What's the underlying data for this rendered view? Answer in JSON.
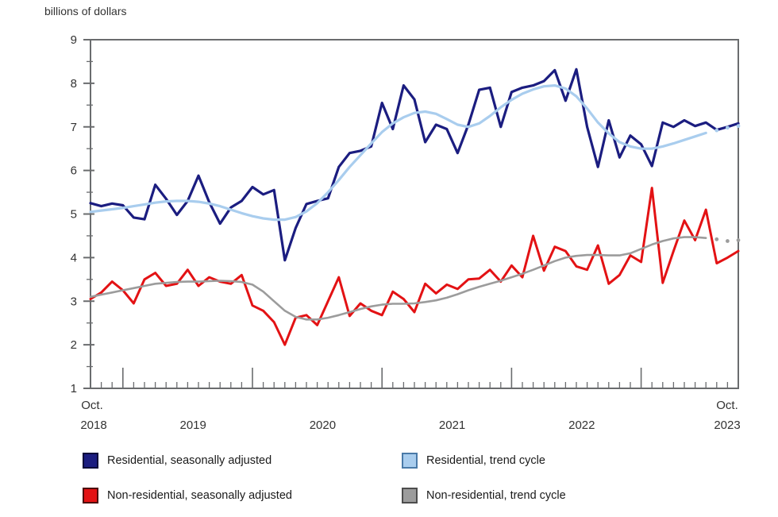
{
  "units_label": "billions of dollars",
  "colors": {
    "residential_sa": "#1b1d80",
    "residential_trend": "#a9cdee",
    "nonresidential_sa": "#e31214",
    "nonresidential_trend": "#9c9c9c",
    "axis": "#6a6c6e",
    "text": "#333333"
  },
  "chart_data": {
    "type": "line",
    "title": "billions of dollars",
    "ylabel": "billions of dollars",
    "xlabel": "",
    "ylim": [
      1,
      9
    ],
    "y_ticks": [
      1,
      2,
      3,
      4,
      5,
      6,
      7,
      8,
      9
    ],
    "y_minor_tick_step": 0.5,
    "grid": false,
    "legend_position": "bottom",
    "frequency": "monthly",
    "x_start": "2018-10",
    "x_end": "2023-10",
    "n_points": 61,
    "trend_dotted_tail_points": 3,
    "x_axis": {
      "left_label_line1": "Oct.",
      "left_label_line2": "2018",
      "years": [
        "2019",
        "2020",
        "2021",
        "2022"
      ],
      "right_label_line1": "Oct.",
      "right_label_line2": "2023"
    },
    "series": [
      {
        "name": "Residential, seasonally adjusted",
        "color": "#1b1d80",
        "style": "solid",
        "line_width": 3.2,
        "values": [
          5.25,
          5.18,
          5.24,
          5.2,
          4.92,
          4.88,
          5.67,
          5.35,
          4.98,
          5.3,
          5.88,
          5.27,
          4.78,
          5.15,
          5.3,
          5.62,
          5.45,
          5.55,
          3.94,
          4.68,
          5.23,
          5.3,
          5.36,
          6.08,
          6.4,
          6.45,
          6.55,
          7.55,
          6.95,
          7.95,
          7.63,
          6.65,
          7.05,
          6.95,
          6.4,
          7.05,
          7.85,
          7.9,
          7.0,
          7.8,
          7.9,
          7.95,
          8.05,
          8.3,
          7.6,
          8.32,
          7.0,
          6.08,
          7.15,
          6.3,
          6.8,
          6.6,
          6.1,
          7.1,
          7.0,
          7.15,
          7.02,
          7.1,
          6.93,
          7.0,
          7.08
        ]
      },
      {
        "name": "Residential, trend cycle",
        "color": "#a9cdee",
        "style": "solid_with_dotted_tail",
        "line_width": 3.2,
        "values": [
          5.05,
          5.08,
          5.11,
          5.14,
          5.18,
          5.22,
          5.26,
          5.29,
          5.3,
          5.3,
          5.28,
          5.24,
          5.18,
          5.1,
          5.02,
          4.95,
          4.9,
          4.87,
          4.87,
          4.93,
          5.06,
          5.25,
          5.5,
          5.78,
          6.08,
          6.35,
          6.62,
          6.88,
          7.08,
          7.22,
          7.32,
          7.35,
          7.3,
          7.18,
          7.05,
          7.0,
          7.08,
          7.25,
          7.45,
          7.62,
          7.76,
          7.86,
          7.93,
          7.95,
          7.88,
          7.7,
          7.42,
          7.1,
          6.85,
          6.65,
          6.55,
          6.5,
          6.5,
          6.55,
          6.62,
          6.7,
          6.78,
          6.86,
          6.92,
          6.98,
          7.02
        ]
      },
      {
        "name": "Non-residential, seasonally adjusted",
        "color": "#e31214",
        "style": "solid",
        "line_width": 3.0,
        "values": [
          3.05,
          3.2,
          3.45,
          3.25,
          2.95,
          3.5,
          3.65,
          3.35,
          3.4,
          3.72,
          3.35,
          3.55,
          3.45,
          3.4,
          3.6,
          2.9,
          2.78,
          2.52,
          2.0,
          2.62,
          2.68,
          2.45,
          3.0,
          3.55,
          2.66,
          2.95,
          2.78,
          2.68,
          3.22,
          3.05,
          2.75,
          3.4,
          3.18,
          3.38,
          3.28,
          3.5,
          3.52,
          3.72,
          3.45,
          3.82,
          3.55,
          4.5,
          3.7,
          4.25,
          4.15,
          3.8,
          3.72,
          4.28,
          3.4,
          3.6,
          4.05,
          3.9,
          5.6,
          3.42,
          4.15,
          4.85,
          4.4,
          5.1,
          3.87,
          4.0,
          4.15
        ]
      },
      {
        "name": "Non-residential, trend cycle",
        "color": "#9c9c9c",
        "style": "solid_with_dotted_tail",
        "line_width": 2.6,
        "values": [
          3.1,
          3.15,
          3.2,
          3.25,
          3.3,
          3.35,
          3.4,
          3.42,
          3.44,
          3.45,
          3.45,
          3.46,
          3.47,
          3.46,
          3.44,
          3.38,
          3.22,
          3.0,
          2.78,
          2.64,
          2.58,
          2.58,
          2.62,
          2.68,
          2.75,
          2.82,
          2.88,
          2.92,
          2.94,
          2.94,
          2.95,
          2.98,
          3.02,
          3.08,
          3.16,
          3.25,
          3.33,
          3.4,
          3.47,
          3.55,
          3.63,
          3.72,
          3.82,
          3.92,
          4.0,
          4.04,
          4.06,
          4.06,
          4.05,
          4.05,
          4.1,
          4.2,
          4.3,
          4.38,
          4.44,
          4.47,
          4.47,
          4.45,
          4.42,
          4.38,
          4.4
        ]
      }
    ]
  }
}
